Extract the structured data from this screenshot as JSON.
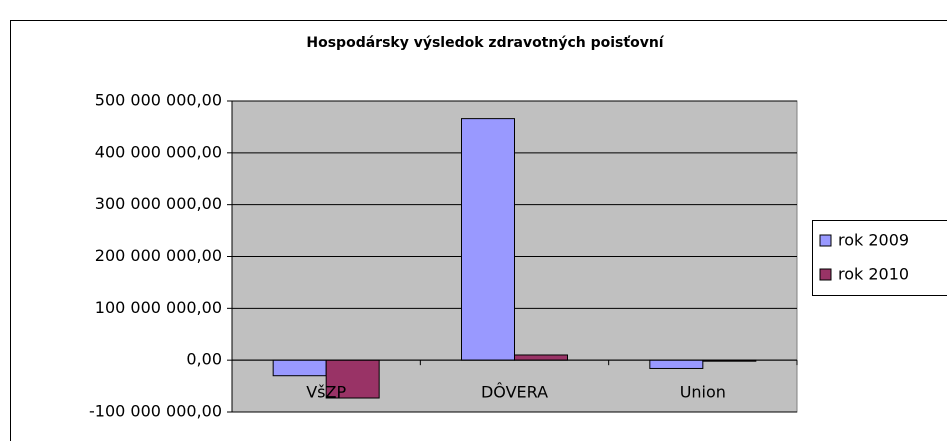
{
  "chart_data": {
    "type": "bar",
    "title": "Hospodársky výsledok zdravotných poisťovní",
    "categories": [
      "VšZP",
      "DÔVERA",
      "Union"
    ],
    "series": [
      {
        "name": "rok 2009",
        "color": "#9999ff",
        "values": [
          -30000000,
          466000000,
          -16000000
        ]
      },
      {
        "name": "rok 2010",
        "color": "#993366",
        "values": [
          -73000000,
          10000000,
          -2000000
        ]
      }
    ],
    "ylim": [
      -100000000,
      500000000
    ],
    "yticks": [
      {
        "value": -100000000,
        "label": "-100 000 000,00"
      },
      {
        "value": 0,
        "label": "0,00"
      },
      {
        "value": 100000000,
        "label": "100 000 000,00"
      },
      {
        "value": 200000000,
        "label": "200 000 000,00"
      },
      {
        "value": 300000000,
        "label": "300 000 000,00"
      },
      {
        "value": 400000000,
        "label": "400 000 000,00"
      },
      {
        "value": 500000000,
        "label": "500 000 000,00"
      }
    ],
    "grid": true,
    "legend": "right"
  }
}
